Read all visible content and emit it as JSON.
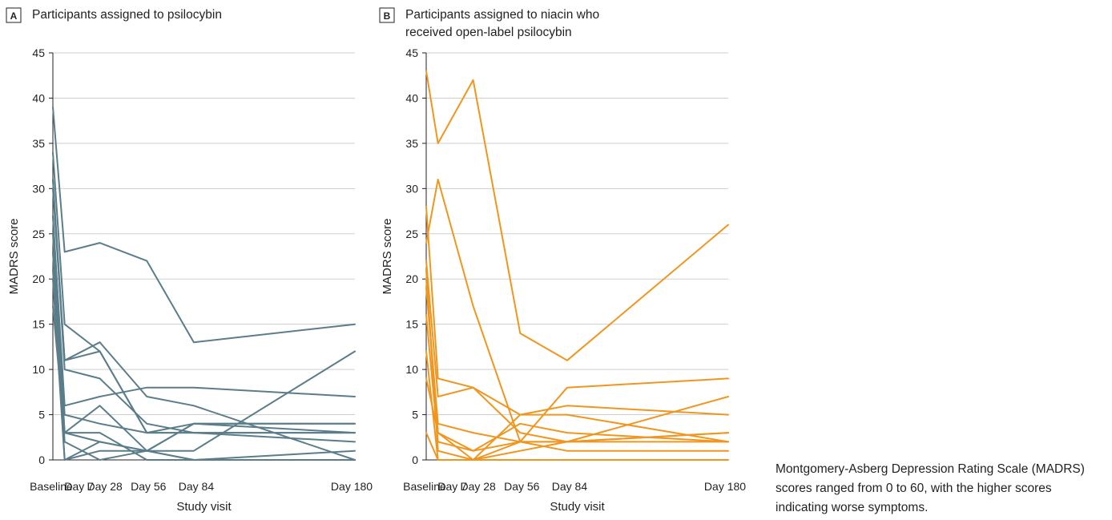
{
  "chart_data": [
    {
      "type": "line",
      "panel_letter": "A",
      "title": "Participants assigned to psilocybin",
      "title_lines": [
        "Participants assigned to psilocybin"
      ],
      "xlabel": "Study visit",
      "ylabel": "MADRS score",
      "categories": [
        "Baseline",
        "Day 7",
        "Day 28",
        "Day 56",
        "Day 84",
        "Day 180"
      ],
      "x_days": [
        0,
        7,
        28,
        56,
        84,
        180
      ],
      "ylim": [
        0,
        45
      ],
      "yticks": [
        0,
        5,
        10,
        15,
        20,
        25,
        30,
        35,
        40,
        45
      ],
      "grid": true,
      "color": "#5b7d8a",
      "series": [
        {
          "values": [
            39,
            23,
            24,
            22,
            13,
            15
          ]
        },
        {
          "values": [
            34,
            15,
            12,
            3,
            3,
            3
          ]
        },
        {
          "values": [
            31,
            11,
            13,
            7,
            6,
            0
          ]
        },
        {
          "values": [
            31,
            10,
            9,
            4,
            3,
            3
          ]
        },
        {
          "values": [
            30,
            11,
            12,
            3,
            4,
            4
          ]
        },
        {
          "values": [
            27,
            6,
            7,
            8,
            8,
            7
          ]
        },
        {
          "values": [
            27,
            5,
            4,
            3,
            3,
            2
          ]
        },
        {
          "values": [
            25,
            3,
            6,
            1,
            4,
            4
          ]
        },
        {
          "values": [
            23,
            3,
            3,
            0,
            0,
            1
          ]
        },
        {
          "values": [
            23,
            2,
            0,
            1,
            1,
            12
          ]
        },
        {
          "values": [
            21,
            0,
            1,
            1,
            0,
            0
          ]
        },
        {
          "values": [
            17,
            3,
            2,
            1,
            0,
            0
          ]
        },
        {
          "values": [
            20,
            0,
            2,
            1,
            4,
            3
          ]
        }
      ]
    },
    {
      "type": "line",
      "panel_letter": "B",
      "title": "Participants assigned to niacin who received open-label psilocybin",
      "title_lines": [
        "Participants assigned to niacin who",
        "received open-label psilocybin"
      ],
      "xlabel": "Study visit",
      "ylabel": "MADRS score",
      "categories": [
        "Baseline",
        "Day 7",
        "Day 28",
        "Day 56",
        "Day 84",
        "Day 180"
      ],
      "x_days": [
        0,
        7,
        28,
        56,
        84,
        180
      ],
      "ylim": [
        0,
        45
      ],
      "yticks": [
        0,
        5,
        10,
        15,
        20,
        25,
        30,
        35,
        40,
        45
      ],
      "grid": true,
      "color": "#f0961e",
      "series": [
        {
          "values": [
            43,
            35,
            42,
            14,
            11,
            26
          ]
        },
        {
          "values": [
            24,
            31,
            17,
            2,
            2,
            2
          ]
        },
        {
          "values": [
            28,
            9,
            8,
            5,
            5,
            2
          ]
        },
        {
          "values": [
            22,
            7,
            8,
            3,
            2,
            3
          ]
        },
        {
          "values": [
            20,
            3,
            0,
            5,
            6,
            5
          ]
        },
        {
          "values": [
            19,
            4,
            3,
            2,
            8,
            9
          ]
        },
        {
          "values": [
            16,
            2,
            1,
            4,
            3,
            2
          ]
        },
        {
          "values": [
            12,
            0,
            0,
            0,
            0,
            0
          ]
        },
        {
          "values": [
            9,
            3,
            1,
            2,
            1,
            1
          ]
        },
        {
          "values": [
            3,
            0,
            0,
            1,
            2,
            3
          ]
        },
        {
          "values": [
            21,
            1,
            0,
            2,
            2,
            7
          ]
        }
      ]
    }
  ],
  "caption": "Montgomery-Asberg Depression Rating Scale (MADRS) scores ranged from 0 to 60, with the higher scores indicating worse symptoms."
}
